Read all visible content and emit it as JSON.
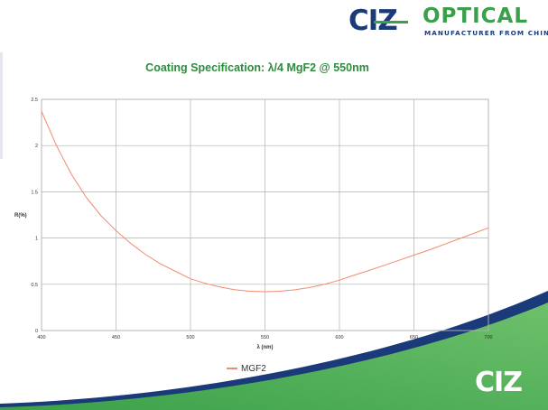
{
  "logo": {
    "brand_letters": "CIZ",
    "brand_word": "OPTICAL",
    "tagline": "MANUFACTURER FROM CHINA",
    "bottom_letters": "CIZ"
  },
  "colors": {
    "brand_blue": "#1b3a7a",
    "brand_green": "#3aa14a",
    "title_green": "#2e8b3e",
    "series_line": "#f08a6e",
    "grid": "#b0b0b0"
  },
  "chart_data": {
    "type": "line",
    "title": "Coating Specification: λ/4 MgF2 @ 550nm",
    "xlabel": "λ (nm)",
    "ylabel": "R(%)",
    "xlim": [
      400,
      700
    ],
    "ylim": [
      0,
      2.5
    ],
    "x_ticks": [
      "400",
      "450",
      "500",
      "550",
      "600",
      "650",
      "700"
    ],
    "y_ticks": [
      "0",
      "0.5",
      "1",
      "1.5",
      "2",
      "2.5"
    ],
    "grid": true,
    "legend_position": "bottom",
    "series": [
      {
        "name": "MGF2",
        "color": "#f08a6e",
        "x": [
          400,
          410,
          420,
          430,
          440,
          450,
          460,
          470,
          480,
          490,
          500,
          510,
          520,
          530,
          540,
          550,
          560,
          570,
          580,
          590,
          600,
          610,
          620,
          630,
          640,
          650,
          660,
          670,
          680,
          690,
          700
        ],
        "y": [
          2.37,
          2.0,
          1.69,
          1.44,
          1.24,
          1.08,
          0.94,
          0.82,
          0.72,
          0.64,
          0.56,
          0.51,
          0.47,
          0.44,
          0.425,
          0.42,
          0.425,
          0.44,
          0.465,
          0.5,
          0.545,
          0.6,
          0.65,
          0.705,
          0.76,
          0.815,
          0.87,
          0.93,
          0.99,
          1.05,
          1.11
        ]
      }
    ]
  }
}
